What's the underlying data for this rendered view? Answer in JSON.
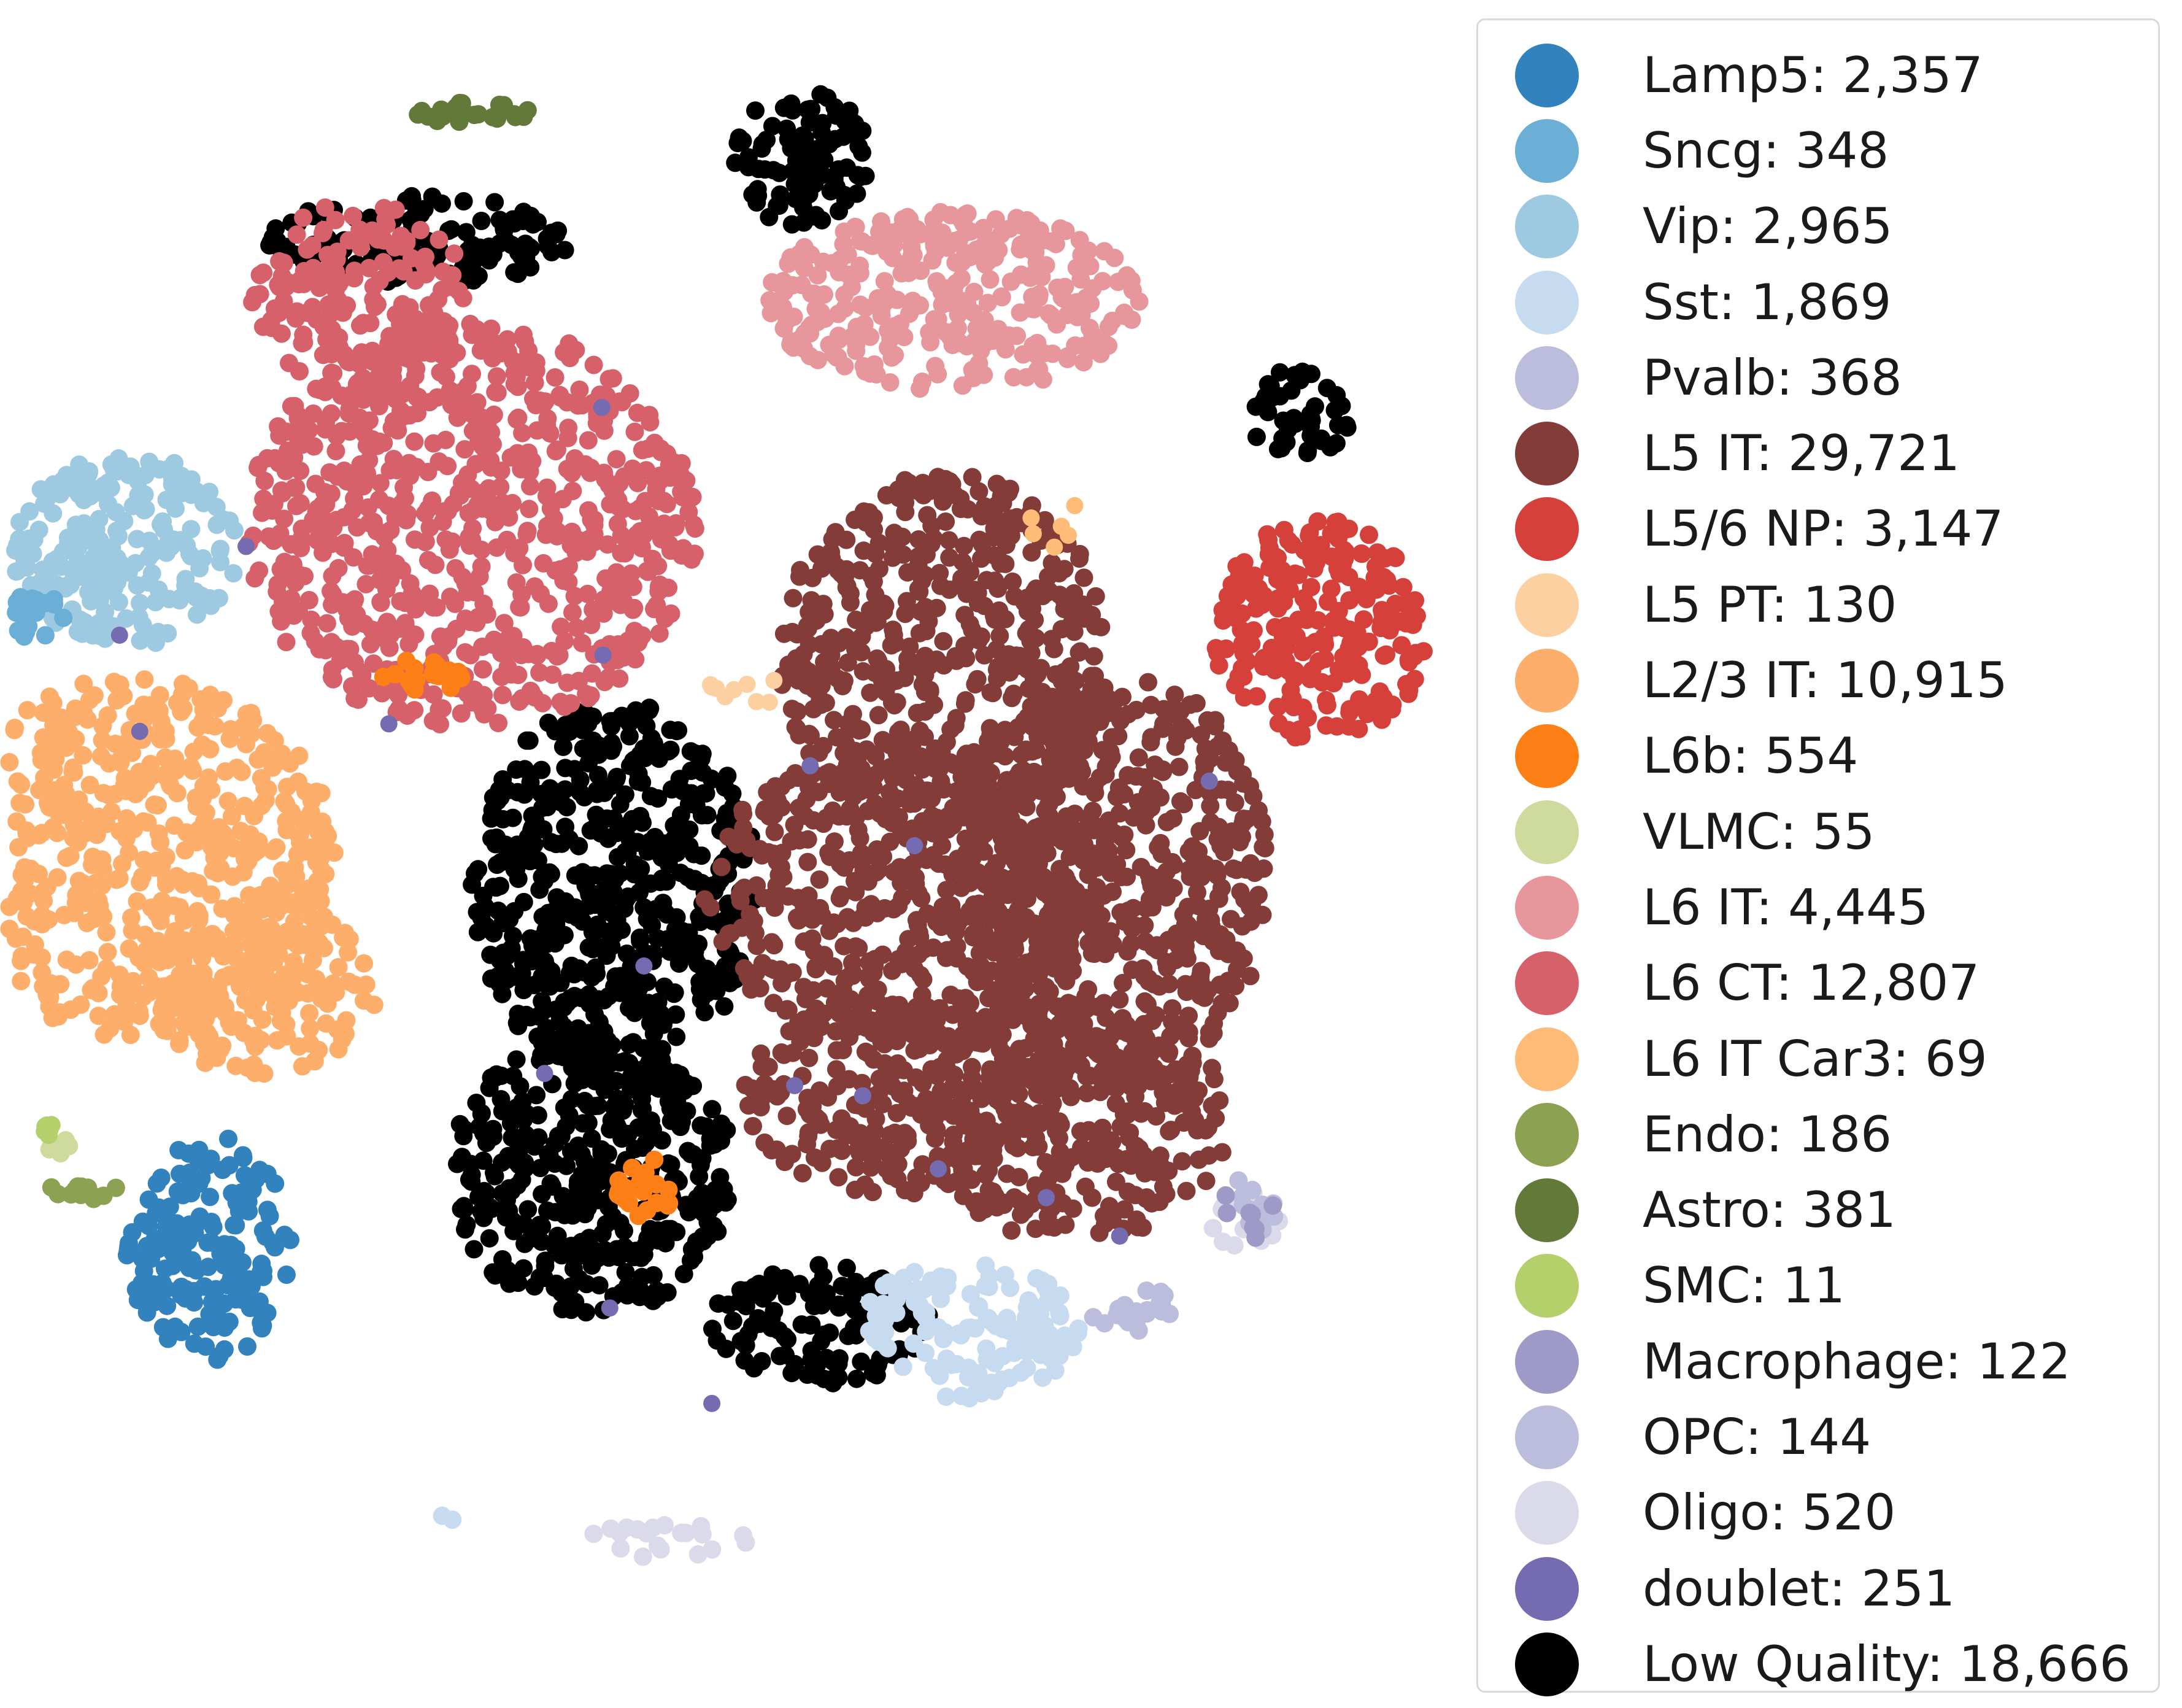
{
  "chart_data": {
    "type": "scatter",
    "title": "",
    "xlabel": "",
    "ylabel": "",
    "axes": "off",
    "grid": false,
    "legend_position": "right",
    "clusters": [
      {
        "label": "Lamp5: 2,357",
        "name": "Lamp5",
        "count": 2357,
        "color": "#3182bd",
        "regions": [
          [
            -3.35,
            -2.75,
            0.55,
            0.75
          ]
        ]
      },
      {
        "label": "Sncg: 348",
        "name": "Sncg",
        "count": 348,
        "color": "#6baed6",
        "regions": [
          [
            -4.5,
            1.45,
            0.2,
            0.15
          ]
        ]
      },
      {
        "label": "Vip: 2,965",
        "name": "Vip",
        "count": 2965,
        "color": "#9ecae1",
        "regions": [
          [
            -3.9,
            1.9,
            0.75,
            0.65
          ]
        ]
      },
      {
        "label": "Sst: 1,869",
        "name": "Sst",
        "count": 1869,
        "color": "#c6dbef",
        "regions": [
          [
            1.7,
            -3.3,
            0.75,
            0.45
          ],
          [
            -1.75,
            -4.55,
            0.12,
            0.05
          ]
        ]
      },
      {
        "label": "Pvalb: 368",
        "name": "Pvalb",
        "count": 368,
        "color": "#bcbddc",
        "regions": [
          [
            2.8,
            -3.15,
            0.3,
            0.15
          ],
          [
            3.6,
            -2.45,
            0.18,
            0.2
          ]
        ]
      },
      {
        "label": "L5 IT: 29,721",
        "name": "L5 IT",
        "count": 29721,
        "color": "#843c39",
        "regions": [
          [
            1.55,
            1.2,
            1.1,
            1.2
          ],
          [
            1.3,
            -0.4,
            1.35,
            1.0
          ],
          [
            2.7,
            -0.3,
            1.0,
            1.4
          ],
          [
            1.2,
            -1.75,
            1.0,
            0.65
          ],
          [
            2.4,
            -1.9,
            1.05,
            0.8
          ]
        ]
      },
      {
        "label": "L5/6 NP: 3,147",
        "name": "L5/6 NP",
        "count": 3147,
        "color": "#d6403a",
        "regions": [
          [
            4.05,
            1.35,
            0.72,
            0.75
          ]
        ]
      },
      {
        "label": "L5 PT: 130",
        "name": "L5 PT",
        "count": 130,
        "color": "#fdd0a2",
        "regions": [
          [
            0.25,
            0.95,
            0.3,
            0.1
          ]
        ]
      },
      {
        "label": "L2/3 IT: 10,915",
        "name": "L2/3 IT",
        "count": 10915,
        "color": "#fdae6b",
        "regions": [
          [
            -3.85,
            -0.15,
            1.35,
            1.2
          ],
          [
            -3.0,
            -1.0,
            0.8,
            0.6
          ]
        ]
      },
      {
        "label": "L6b: 554",
        "name": "L6b",
        "count": 554,
        "color": "#fd7f15",
        "regions": [
          [
            -0.45,
            -2.35,
            0.22,
            0.2
          ],
          [
            -1.95,
            1.05,
            0.3,
            0.12
          ]
        ]
      },
      {
        "label": "VLMC: 55",
        "name": "VLMC",
        "count": 55,
        "color": "#cedb9c",
        "regions": [
          [
            -4.35,
            -2.05,
            0.08,
            0.08
          ]
        ]
      },
      {
        "label": "L6 IT: 4,445",
        "name": "L6 IT",
        "count": 4445,
        "color": "#e7969c",
        "regions": [
          [
            1.6,
            3.55,
            1.25,
            0.6
          ]
        ]
      },
      {
        "label": "L6 CT: 12,807",
        "name": "L6 CT",
        "count": 12807,
        "color": "#d6616b",
        "regions": [
          [
            -2.35,
            3.55,
            0.75,
            0.65
          ],
          [
            -1.6,
            2.05,
            1.5,
            1.35
          ]
        ]
      },
      {
        "label": "L6 IT Car3: 69",
        "name": "L6 IT Car3",
        "count": 69,
        "color": "#ffbb78",
        "regions": [
          [
            2.35,
            2.05,
            0.25,
            0.15
          ]
        ]
      },
      {
        "label": "Endo: 186",
        "name": "Endo",
        "count": 186,
        "color": "#8ca252",
        "regions": [
          [
            -4.2,
            -2.35,
            0.25,
            0.08
          ]
        ]
      },
      {
        "label": "Astro: 381",
        "name": "Astro",
        "count": 381,
        "color": "#637939",
        "regions": [
          [
            -1.6,
            4.8,
            0.42,
            0.07
          ]
        ]
      },
      {
        "label": "SMC: 11",
        "name": "SMC",
        "count": 11,
        "color": "#b5cf6b",
        "regions": [
          [
            -4.4,
            -1.95,
            0.05,
            0.05
          ]
        ]
      },
      {
        "label": "Macrophage: 122",
        "name": "Macrophage",
        "count": 122,
        "color": "#9e9ac8",
        "regions": [
          [
            4.95,
            0.05,
            0.06,
            0.12
          ],
          [
            3.55,
            -2.5,
            0.2,
            0.2
          ]
        ]
      },
      {
        "label": "OPC: 144",
        "name": "OPC",
        "count": 144,
        "color": "#bcbddc",
        "regions": [
          [
            2.85,
            -3.15,
            0.2,
            0.12
          ]
        ]
      },
      {
        "label": "Oligo: 520",
        "name": "Oligo",
        "count": 520,
        "color": "#dadaeb",
        "regions": [
          [
            -0.3,
            -4.7,
            0.55,
            0.12
          ],
          [
            3.55,
            -2.55,
            0.25,
            0.2
          ]
        ]
      },
      {
        "label": "doublet: 251",
        "name": "doublet",
        "count": 251,
        "color": "#756bb1",
        "regions": [
          [
            0,
            0,
            4.5,
            4.5
          ]
        ]
      },
      {
        "label": "Low Quality: 18,666",
        "name": "Low Quality",
        "count": 18666,
        "color": "#000000",
        "regions": [
          [
            -0.65,
            -0.35,
            0.95,
            1.25
          ],
          [
            -0.8,
            -2.25,
            0.95,
            0.95
          ],
          [
            0.75,
            -3.25,
            0.75,
            0.4
          ],
          [
            0.6,
            4.5,
            0.45,
            0.45
          ],
          [
            -1.95,
            3.95,
            1.0,
            0.3
          ],
          [
            3.9,
            2.8,
            0.35,
            0.3
          ]
        ]
      }
    ]
  }
}
